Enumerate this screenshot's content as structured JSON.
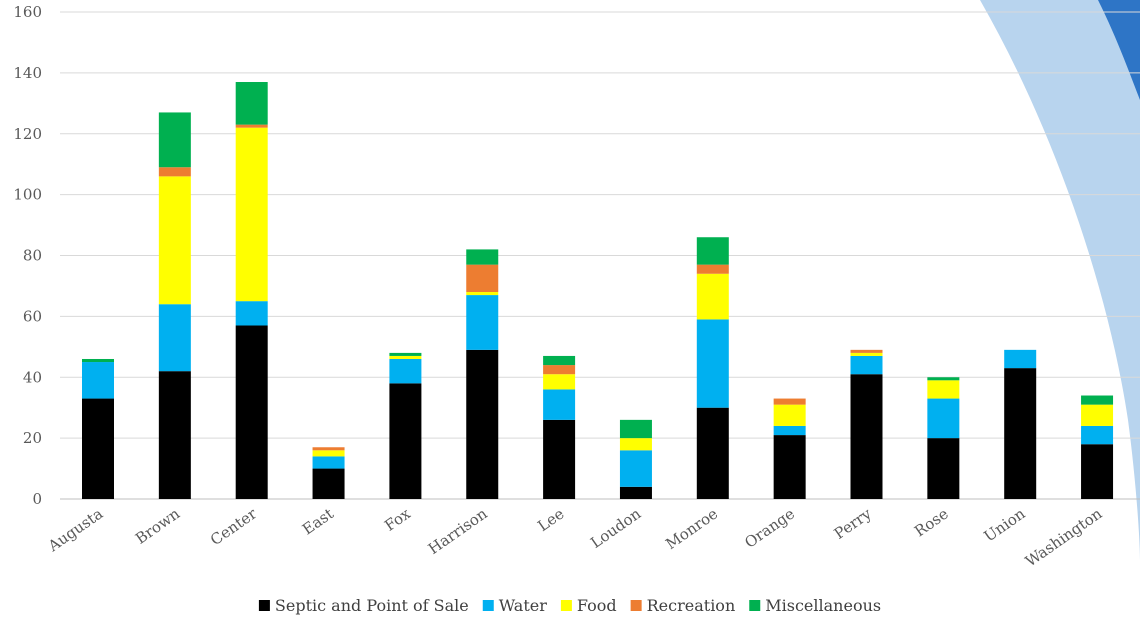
{
  "chart_data": {
    "type": "bar",
    "stacked": true,
    "categories": [
      "Augusta",
      "Brown",
      "Center",
      "East",
      "Fox",
      "Harrison",
      "Lee",
      "Loudon",
      "Monroe",
      "Orange",
      "Perry",
      "Rose",
      "Union",
      "Washington"
    ],
    "series": [
      {
        "name": "Septic and Point of Sale",
        "color": "#000000",
        "values": [
          33,
          42,
          57,
          10,
          38,
          49,
          26,
          4,
          30,
          21,
          41,
          20,
          43,
          18
        ]
      },
      {
        "name": "Water",
        "color": "#00b0f0",
        "values": [
          12,
          22,
          8,
          4,
          8,
          18,
          10,
          12,
          29,
          3,
          6,
          13,
          6,
          6
        ]
      },
      {
        "name": "Food",
        "color": "#ffff00",
        "values": [
          0,
          42,
          57,
          2,
          1,
          1,
          5,
          4,
          15,
          7,
          1,
          6,
          0,
          7
        ]
      },
      {
        "name": "Recreation",
        "color": "#ed7d31",
        "values": [
          0,
          3,
          1,
          1,
          0,
          9,
          3,
          0,
          3,
          2,
          1,
          0,
          0,
          0
        ]
      },
      {
        "name": "Miscellaneous",
        "color": "#00b050",
        "values": [
          1,
          18,
          14,
          0,
          1,
          5,
          3,
          6,
          9,
          0,
          0,
          1,
          0,
          3
        ]
      }
    ],
    "ylim": [
      0,
      160
    ],
    "yticks": [
      "0",
      "20",
      "40",
      "60",
      "80",
      "100",
      "120",
      "140",
      "160"
    ],
    "grid": true,
    "legend_position": "bottom"
  },
  "decoration": {
    "swoosh_light": "#b8d4ee",
    "swoosh_dark": "#2e75c6"
  }
}
